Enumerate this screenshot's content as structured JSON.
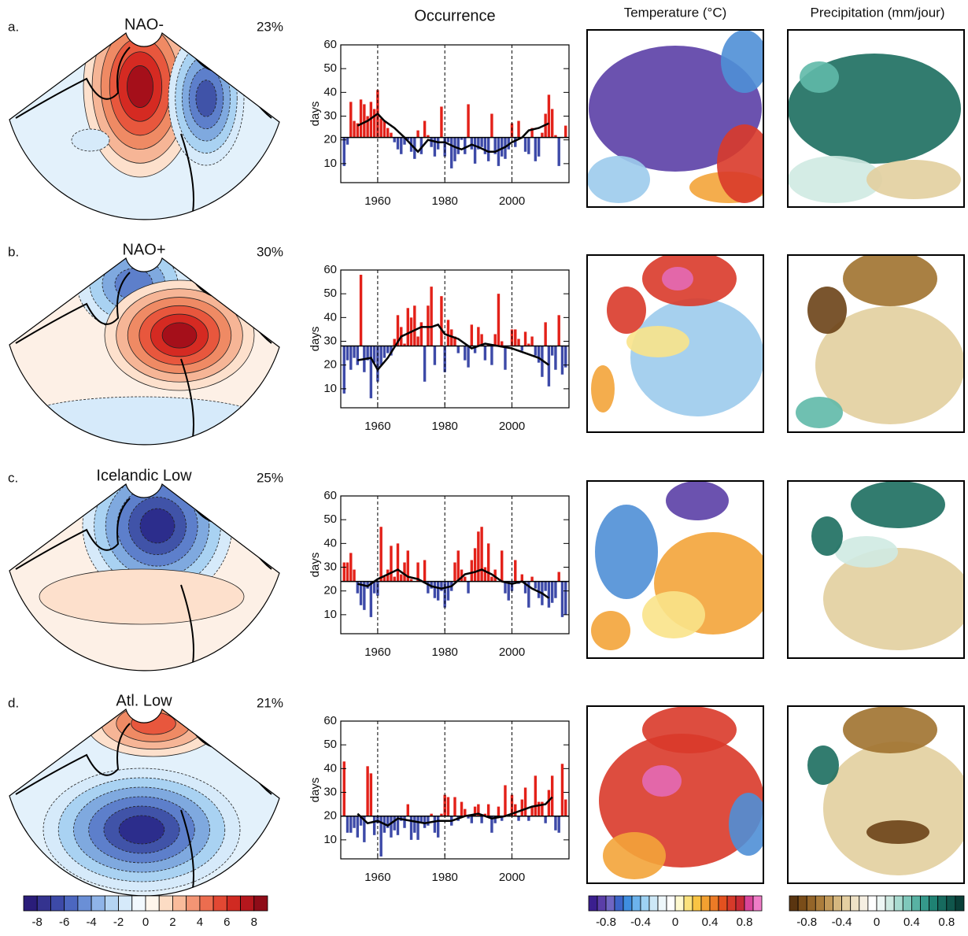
{
  "column_titles": {
    "occurrence": "Occurrence",
    "temperature": "Temperature (°C)",
    "precipitation": "Precipitation (mm/jour)"
  },
  "chart_data": [
    {
      "type": "bar",
      "panel": "a.",
      "title": "NAO-",
      "percent": "23%",
      "y_label": "days",
      "xlim": [
        1949,
        2017
      ],
      "xticks": [
        1960,
        1980,
        2000
      ],
      "ylim": [
        2,
        60
      ],
      "yticks": [
        10,
        20,
        30,
        40,
        50,
        60
      ],
      "baseline": 21,
      "above_color": "#e32119",
      "below_color": "#3d4aa8",
      "x": [
        1950,
        1951,
        1952,
        1953,
        1954,
        1955,
        1956,
        1957,
        1958,
        1959,
        1960,
        1961,
        1962,
        1963,
        1964,
        1965,
        1966,
        1967,
        1968,
        1969,
        1970,
        1971,
        1972,
        1973,
        1974,
        1975,
        1976,
        1977,
        1978,
        1979,
        1980,
        1981,
        1982,
        1983,
        1984,
        1985,
        1986,
        1987,
        1988,
        1989,
        1990,
        1991,
        1992,
        1993,
        1994,
        1995,
        1996,
        1997,
        1998,
        1999,
        2000,
        2001,
        2002,
        2003,
        2004,
        2005,
        2006,
        2007,
        2008,
        2009,
        2010,
        2011,
        2012,
        2013,
        2014,
        2015,
        2016
      ],
      "values": [
        9,
        18,
        36,
        28,
        27,
        37,
        35,
        30,
        36,
        33,
        41,
        29,
        28,
        25,
        23,
        19,
        16,
        14,
        18,
        20,
        15,
        12,
        24,
        14,
        28,
        22,
        17,
        13,
        16,
        34,
        13,
        19,
        8,
        11,
        14,
        20,
        14,
        35,
        16,
        10,
        16,
        17,
        14,
        11,
        31,
        14,
        9,
        13,
        12,
        16,
        27,
        17,
        28,
        21,
        15,
        14,
        25,
        11,
        13,
        23,
        31,
        39,
        33,
        22,
        9,
        21,
        26
      ],
      "line": {
        "color": "#000000",
        "x": [
          1954,
          1957,
          1960,
          1962,
          1965,
          1968,
          1970,
          1972,
          1975,
          1978,
          1980,
          1983,
          1985,
          1988,
          1990,
          1993,
          1995,
          1998,
          2000,
          2003,
          2005,
          2008,
          2011
        ],
        "values": [
          26,
          28,
          31,
          28,
          25,
          21,
          18,
          15,
          20,
          19,
          19,
          17,
          16,
          18,
          17,
          15,
          15,
          17,
          19,
          21,
          24,
          25,
          27
        ]
      }
    },
    {
      "type": "bar",
      "panel": "b.",
      "title": "NAO+",
      "percent": "30%",
      "y_label": "days",
      "xlim": [
        1949,
        2017
      ],
      "xticks": [
        1960,
        1980,
        2000
      ],
      "ylim": [
        2,
        60
      ],
      "yticks": [
        10,
        20,
        30,
        40,
        50,
        60
      ],
      "baseline": 28,
      "above_color": "#e32119",
      "below_color": "#3d4aa8",
      "x": [
        1950,
        1951,
        1952,
        1953,
        1954,
        1955,
        1956,
        1957,
        1958,
        1959,
        1960,
        1961,
        1962,
        1963,
        1964,
        1965,
        1966,
        1967,
        1968,
        1969,
        1970,
        1971,
        1972,
        1973,
        1974,
        1975,
        1976,
        1977,
        1978,
        1979,
        1980,
        1981,
        1982,
        1983,
        1984,
        1985,
        1986,
        1987,
        1988,
        1989,
        1990,
        1991,
        1992,
        1993,
        1994,
        1995,
        1996,
        1997,
        1998,
        1999,
        2000,
        2001,
        2002,
        2003,
        2004,
        2005,
        2006,
        2007,
        2008,
        2009,
        2010,
        2011,
        2012,
        2013,
        2014,
        2015,
        2016
      ],
      "values": [
        8,
        22,
        18,
        23,
        20,
        58,
        17,
        22,
        6,
        21,
        13,
        20,
        23,
        25,
        24,
        31,
        41,
        36,
        29,
        44,
        40,
        45,
        32,
        38,
        13,
        45,
        53,
        20,
        28,
        49,
        17,
        39,
        35,
        32,
        25,
        28,
        22,
        19,
        37,
        25,
        36,
        33,
        22,
        29,
        20,
        33,
        50,
        30,
        18,
        28,
        35,
        35,
        31,
        26,
        34,
        29,
        32,
        24,
        21,
        15,
        38,
        11,
        24,
        18,
        41,
        16,
        19
      ],
      "line": {
        "color": "#000000",
        "x": [
          1954,
          1958,
          1960,
          1963,
          1967,
          1970,
          1973,
          1976,
          1978,
          1980,
          1984,
          1988,
          1992,
          1996,
          2000,
          2004,
          2008,
          2011
        ],
        "values": [
          22,
          23,
          18,
          23,
          32,
          34,
          36,
          36,
          37,
          33,
          31,
          27,
          29,
          28,
          27,
          25,
          23,
          20
        ]
      }
    },
    {
      "type": "bar",
      "panel": "c.",
      "title": "Icelandic Low",
      "percent": "25%",
      "y_label": "days",
      "xlim": [
        1949,
        2017
      ],
      "xticks": [
        1960,
        1980,
        2000
      ],
      "ylim": [
        2,
        60
      ],
      "yticks": [
        10,
        20,
        30,
        40,
        50,
        60
      ],
      "baseline": 24,
      "above_color": "#e32119",
      "below_color": "#3d4aa8",
      "x": [
        1950,
        1951,
        1952,
        1953,
        1954,
        1955,
        1956,
        1957,
        1958,
        1959,
        1960,
        1961,
        1962,
        1963,
        1964,
        1965,
        1966,
        1967,
        1968,
        1969,
        1970,
        1971,
        1972,
        1973,
        1974,
        1975,
        1976,
        1977,
        1978,
        1979,
        1980,
        1981,
        1982,
        1983,
        1984,
        1985,
        1986,
        1987,
        1988,
        1989,
        1990,
        1991,
        1992,
        1993,
        1994,
        1995,
        1996,
        1997,
        1998,
        1999,
        2000,
        2001,
        2002,
        2003,
        2004,
        2005,
        2006,
        2007,
        2008,
        2009,
        2010,
        2011,
        2012,
        2013,
        2014,
        2015,
        2016
      ],
      "values": [
        32,
        32,
        36,
        29,
        19,
        14,
        12,
        21,
        9,
        19,
        18,
        47,
        26,
        29,
        39,
        26,
        40,
        27,
        32,
        37,
        25,
        24,
        32,
        24,
        33,
        19,
        21,
        17,
        16,
        20,
        13,
        16,
        20,
        32,
        37,
        29,
        26,
        19,
        33,
        38,
        45,
        47,
        30,
        40,
        26,
        29,
        24,
        37,
        19,
        16,
        20,
        33,
        23,
        27,
        19,
        13,
        26,
        21,
        17,
        14,
        20,
        13,
        15,
        17,
        28,
        9,
        10
      ],
      "line": {
        "color": "#000000",
        "x": [
          1954,
          1957,
          1960,
          1963,
          1966,
          1969,
          1972,
          1976,
          1979,
          1982,
          1986,
          1989,
          1991,
          1994,
          1997,
          2000,
          2003,
          2006,
          2009,
          2011
        ],
        "values": [
          23,
          22,
          25,
          27,
          29,
          26,
          25,
          22,
          21,
          22,
          27,
          28,
          29,
          27,
          24,
          23,
          24,
          21,
          19,
          17
        ]
      }
    },
    {
      "type": "bar",
      "panel": "d.",
      "title": "Atl. Low",
      "percent": "21%",
      "y_label": "days",
      "xlim": [
        1949,
        2017
      ],
      "xticks": [
        1960,
        1980,
        2000
      ],
      "ylim": [
        2,
        60
      ],
      "yticks": [
        10,
        20,
        30,
        40,
        50,
        60
      ],
      "baseline": 20,
      "above_color": "#e32119",
      "below_color": "#3d4aa8",
      "x": [
        1950,
        1951,
        1952,
        1953,
        1954,
        1955,
        1956,
        1957,
        1958,
        1959,
        1960,
        1961,
        1962,
        1963,
        1964,
        1965,
        1966,
        1967,
        1968,
        1969,
        1970,
        1971,
        1972,
        1973,
        1974,
        1975,
        1976,
        1977,
        1978,
        1979,
        1980,
        1981,
        1982,
        1983,
        1984,
        1985,
        1986,
        1987,
        1988,
        1989,
        1990,
        1991,
        1992,
        1993,
        1994,
        1995,
        1996,
        1997,
        1998,
        1999,
        2000,
        2001,
        2002,
        2003,
        2004,
        2005,
        2006,
        2007,
        2008,
        2009,
        2010,
        2011,
        2012,
        2013,
        2014,
        2015,
        2016
      ],
      "values": [
        43,
        13,
        13,
        15,
        11,
        16,
        9,
        41,
        38,
        12,
        17,
        3,
        13,
        15,
        11,
        14,
        12,
        18,
        15,
        25,
        10,
        13,
        10,
        17,
        15,
        16,
        21,
        13,
        11,
        21,
        29,
        28,
        16,
        28,
        18,
        26,
        23,
        19,
        17,
        24,
        25,
        17,
        21,
        25,
        13,
        17,
        24,
        18,
        33,
        20,
        29,
        25,
        18,
        27,
        32,
        18,
        24,
        37,
        26,
        26,
        17,
        31,
        37,
        14,
        13,
        42,
        27
      ],
      "line": {
        "color": "#000000",
        "x": [
          1954,
          1957,
          1960,
          1963,
          1966,
          1970,
          1974,
          1978,
          1982,
          1986,
          1990,
          1994,
          1998,
          2002,
          2006,
          2010,
          2012
        ],
        "values": [
          21,
          17,
          18,
          16,
          19,
          18,
          17,
          18,
          18,
          20,
          21,
          19,
          20,
          22,
          24,
          25,
          28
        ]
      }
    }
  ],
  "colorbars": [
    {
      "lim": [
        -9,
        9
      ],
      "ticks": [
        -8,
        -6,
        -4,
        -2,
        0,
        2,
        4,
        6,
        8
      ],
      "colors": [
        "#2a1d7a",
        "#34338f",
        "#3d4aa8",
        "#4c67c0",
        "#6a8fd6",
        "#8fb4e8",
        "#b4d4f3",
        "#d6eafa",
        "#f2f9fe",
        "#fff6ec",
        "#fcdcc4",
        "#f9bb9b",
        "#f39574",
        "#ec6d4f",
        "#e24833",
        "#d02a22",
        "#b5171d",
        "#8f0c18"
      ]
    },
    {
      "lim": [
        -1,
        1
      ],
      "ticks": [
        -0.8,
        -0.4,
        0,
        0.4,
        0.8
      ],
      "colors": [
        "#3b1f8f",
        "#5a3ea8",
        "#6f66c2",
        "#3d64c8",
        "#3f8ee0",
        "#6cb3ec",
        "#9ed2f3",
        "#cde8f7",
        "#eef7fb",
        "#ffffff",
        "#fff9d0",
        "#fbe27c",
        "#f9c443",
        "#f3a131",
        "#ec7b26",
        "#e3511f",
        "#d63a2a",
        "#c72a35",
        "#d9459a",
        "#ef7dc7"
      ]
    },
    {
      "lim": [
        -1,
        1
      ],
      "ticks": [
        -0.8,
        -0.4,
        0,
        0.4,
        0.8
      ],
      "colors": [
        "#5a3510",
        "#7a4d19",
        "#946529",
        "#ab7d3c",
        "#c29a5a",
        "#d5b77f",
        "#e4cfa2",
        "#efe2c6",
        "#f6efe2",
        "#ffffff",
        "#eef7f5",
        "#cfeae2",
        "#a9dbd0",
        "#7fc8bb",
        "#58b2a3",
        "#35998b",
        "#1f8273",
        "#176b5f",
        "#10564c",
        "#0a3f38"
      ]
    }
  ]
}
